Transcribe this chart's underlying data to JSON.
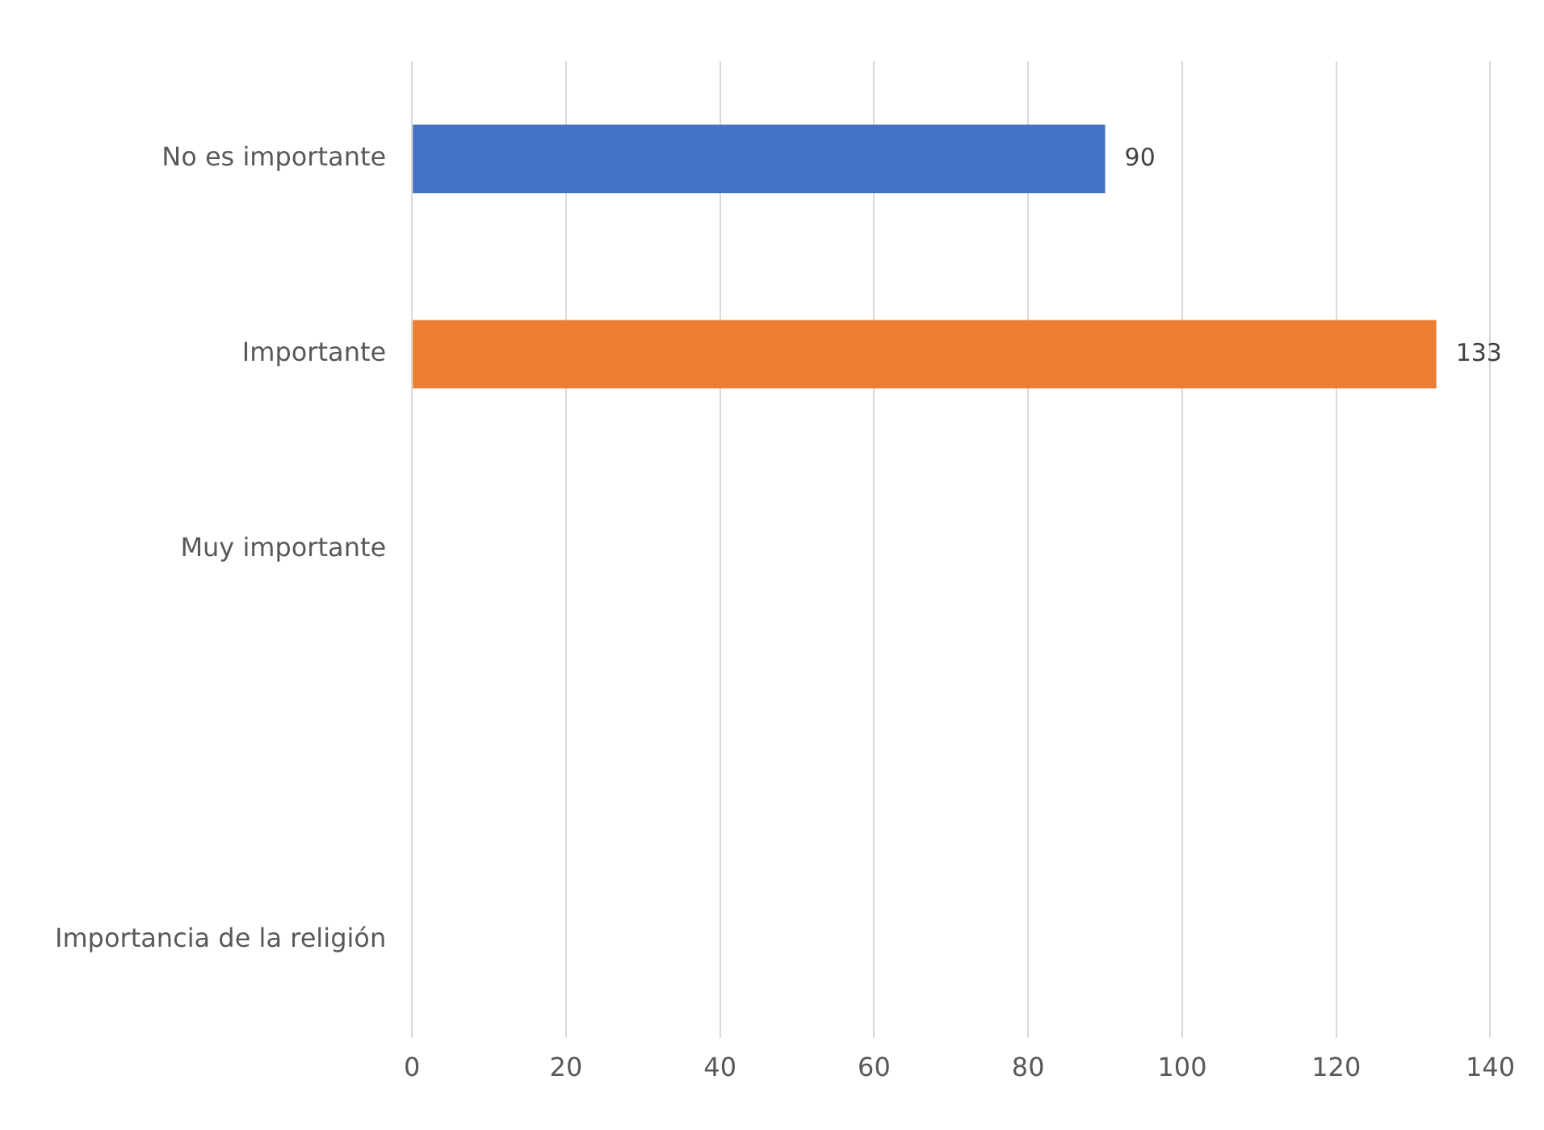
{
  "chart_data": {
    "type": "bar",
    "orientation": "horizontal",
    "categories": [
      "No es importante",
      "Importante",
      "Muy importante",
      null,
      "Importancia de la religión"
    ],
    "values": [
      90,
      133,
      null,
      null,
      null
    ],
    "colors": [
      "#4472c4",
      "#ed7d31",
      null,
      null,
      null
    ],
    "xlim": [
      0,
      140
    ],
    "xticks": [
      0,
      20,
      40,
      60,
      80,
      100,
      120,
      140
    ],
    "grid": "x",
    "data_labels": true,
    "legend": false
  }
}
